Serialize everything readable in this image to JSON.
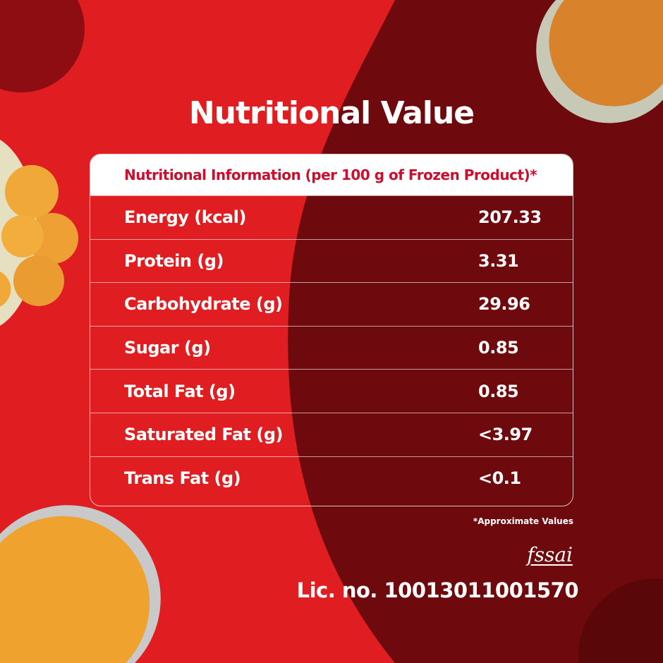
{
  "title": "Nutritional Value",
  "table": {
    "header": "Nutritional Information (per 100 g of Frozen Product)*",
    "rows": [
      {
        "label": "Energy (kcal)",
        "value": "207.33"
      },
      {
        "label": "Protein (g)",
        "value": "3.31"
      },
      {
        "label": "Carbohydrate (g)",
        "value": "29.96"
      },
      {
        "label": "Sugar (g)",
        "value": "0.85"
      },
      {
        "label": "Total Fat (g)",
        "value": "0.85"
      },
      {
        "label": "Saturated Fat (g)",
        "value": "<3.97"
      },
      {
        "label": "Trans Fat (g)",
        "value": "<0.1"
      }
    ]
  },
  "footnote": "*Approximate Values",
  "logo_text": "fssai",
  "license": "Lic. no. 10013011001570",
  "colors": {
    "bright_red": "#e01d21",
    "dark_red": "#6e0a0d",
    "header_text": "#c8102e"
  }
}
